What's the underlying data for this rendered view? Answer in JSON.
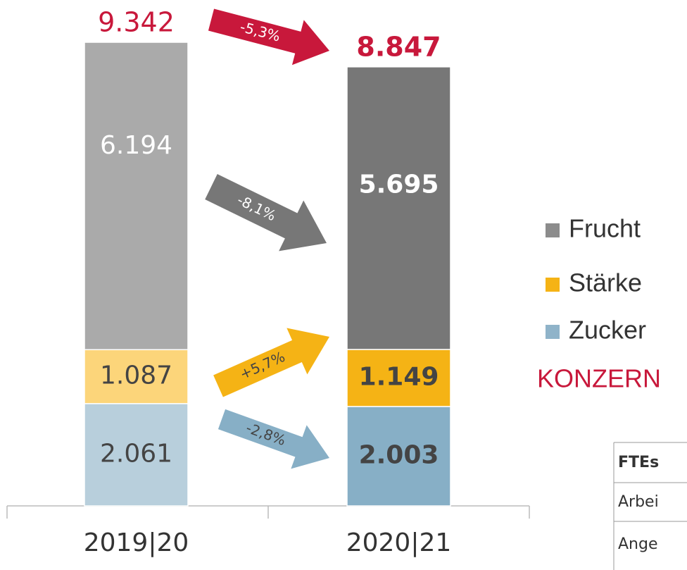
{
  "chart_data": {
    "type": "stacked_bar",
    "categories": [
      "2019|20",
      "2020|21"
    ],
    "series": [
      {
        "name": "Zucker",
        "color": "#8fb3c9",
        "colors": [
          "#b8cfdc",
          "#87afc6"
        ],
        "values": [
          2061,
          2003
        ],
        "value_labels": [
          "2.061",
          "2.003"
        ]
      },
      {
        "name": "Stärke",
        "color": "#f5b315",
        "colors": [
          "#fcd57a",
          "#f5b315"
        ],
        "values": [
          1087,
          1149
        ],
        "value_labels": [
          "1.087",
          "1.149"
        ]
      },
      {
        "name": "Frucht",
        "color": "#8c8c8c",
        "colors": [
          "#aaaaaa",
          "#777777"
        ],
        "values": [
          6194,
          5695
        ],
        "value_labels": [
          "6.194",
          "5.695"
        ]
      }
    ],
    "totals": {
      "color": "#c8183b",
      "values": [
        9342,
        8847
      ],
      "value_labels": [
        "9.342",
        "8.847"
      ]
    },
    "changes": [
      {
        "color": "#87afc6",
        "value": -2.8,
        "label": "-2,8%"
      },
      {
        "color": "#f5b315",
        "value": 5.7,
        "label": "+5,7%"
      },
      {
        "color": "#777777",
        "value": -8.1,
        "label": "-8,1%"
      },
      {
        "color": "#c8183b",
        "value": -5.3,
        "label": "-5,3%"
      }
    ],
    "group_label": "KONZERN",
    "table": {
      "header": "FTEs",
      "rows": [
        "Arbei",
        "Ange"
      ]
    }
  }
}
